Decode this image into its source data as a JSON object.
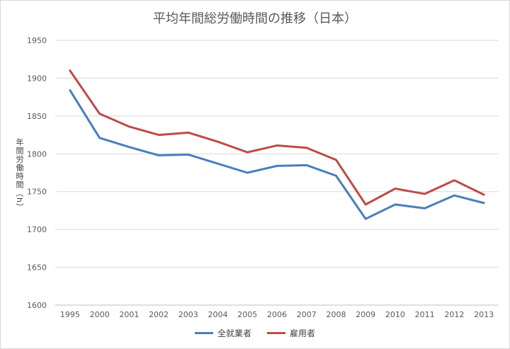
{
  "chart_data": {
    "type": "line",
    "title": "平均年間総労働時間の推移（日本）",
    "ylabel": "年間労働時間（h）",
    "xlabel": "",
    "categories": [
      "1995",
      "2000",
      "2001",
      "2002",
      "2003",
      "2004",
      "2005",
      "2006",
      "2007",
      "2008",
      "2009",
      "2010",
      "2011",
      "2012",
      "2013"
    ],
    "ylim": [
      1600,
      1950
    ],
    "yticks": [
      1600,
      1650,
      1700,
      1750,
      1800,
      1850,
      1900,
      1950
    ],
    "grid": "horizontal",
    "legend_position": "bottom",
    "series": [
      {
        "name": "全就業者",
        "color": "#4a7ebb",
        "values": [
          1884,
          1821,
          1809,
          1798,
          1799,
          1787,
          1775,
          1784,
          1785,
          1771,
          1714,
          1733,
          1728,
          1745,
          1735
        ]
      },
      {
        "name": "雇用者",
        "color": "#be4b48",
        "values": [
          1910,
          1853,
          1836,
          1825,
          1828,
          1816,
          1802,
          1811,
          1808,
          1792,
          1733,
          1754,
          1747,
          1765,
          1746
        ]
      }
    ]
  }
}
